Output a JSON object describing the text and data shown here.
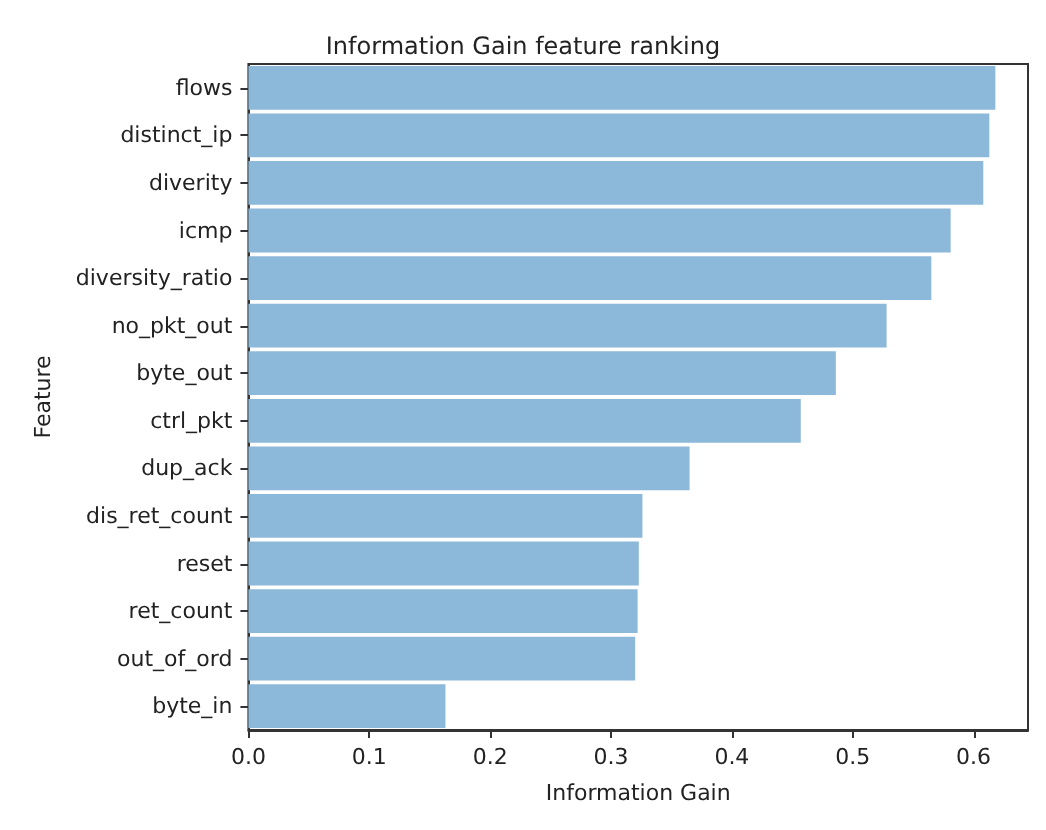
{
  "chart_data": {
    "type": "bar",
    "orientation": "horizontal",
    "title": "Information Gain feature ranking",
    "xlabel": "Information Gain",
    "ylabel": "Feature",
    "categories": [
      "flows",
      "distinct_ip",
      "diverity",
      "icmp",
      "diversity_ratio",
      "no_pkt_out",
      "byte_out",
      "ctrl_pkt",
      "dup_ack",
      "dis_ret_count",
      "reset",
      "ret_count",
      "out_of_ord",
      "byte_in"
    ],
    "values": [
      0.618,
      0.613,
      0.608,
      0.581,
      0.565,
      0.528,
      0.486,
      0.457,
      0.365,
      0.326,
      0.323,
      0.322,
      0.32,
      0.163
    ],
    "color": "#8cb8d9",
    "xlim": [
      0,
      0.645
    ],
    "xticks": [
      {
        "value": 0,
        "label": "0.0"
      },
      {
        "value": 0.1,
        "label": "0.1"
      },
      {
        "value": 0.2,
        "label": "0.2"
      },
      {
        "value": 0.3,
        "label": "0.3"
      },
      {
        "value": 0.4,
        "label": "0.4"
      },
      {
        "value": 0.5,
        "label": "0.5"
      },
      {
        "value": 0.6,
        "label": "0.6"
      }
    ],
    "grid": false
  }
}
